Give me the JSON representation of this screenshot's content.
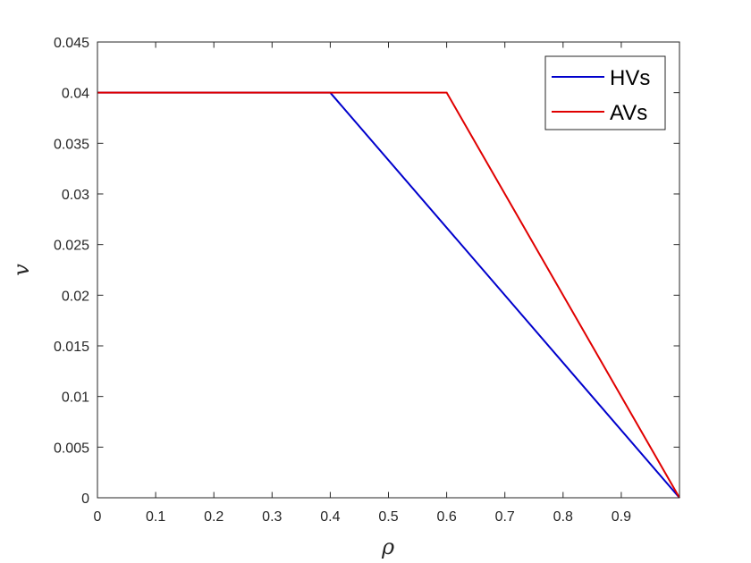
{
  "chart_data": {
    "type": "line",
    "xlabel": "ρ",
    "ylabel": "v",
    "xlim": [
      0,
      1
    ],
    "ylim": [
      0,
      0.045
    ],
    "x_ticks": [
      "0",
      "0.1",
      "0.2",
      "0.3",
      "0.4",
      "0.5",
      "0.6",
      "0.7",
      "0.8",
      "0.9"
    ],
    "y_ticks": [
      "0",
      "0.005",
      "0.01",
      "0.015",
      "0.02",
      "0.025",
      "0.03",
      "0.035",
      "0.04",
      "0.045"
    ],
    "grid": false,
    "legend_position": "top-right",
    "series": [
      {
        "name": "HVs",
        "color": "#0000CC",
        "x": [
          0,
          0.4,
          1
        ],
        "y": [
          0.04,
          0.04,
          0
        ]
      },
      {
        "name": "AVs",
        "color": "#E00000",
        "x": [
          0,
          0.6,
          1
        ],
        "y": [
          0.04,
          0.04,
          0
        ]
      }
    ]
  }
}
